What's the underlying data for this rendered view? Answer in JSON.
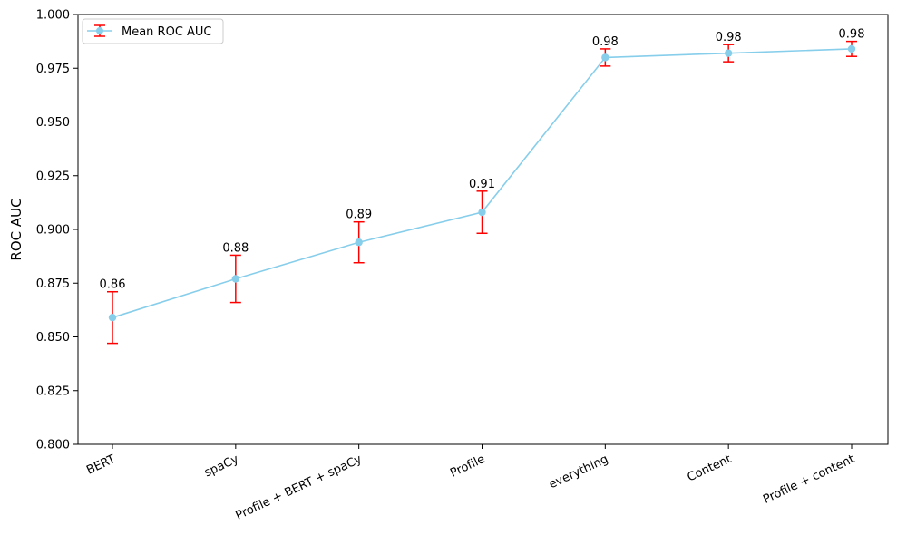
{
  "chart_data": {
    "type": "line",
    "title": "",
    "xlabel": "",
    "ylabel": "ROC AUC",
    "ylim": [
      0.8,
      1.0
    ],
    "yticks": [
      0.8,
      0.825,
      0.85,
      0.875,
      0.9,
      0.925,
      0.95,
      0.975,
      1.0
    ],
    "ytick_labels": [
      "0.800",
      "0.825",
      "0.850",
      "0.875",
      "0.900",
      "0.925",
      "0.950",
      "0.975",
      "1.000"
    ],
    "categories": [
      "BERT",
      "spaCy",
      "Profile + BERT + spaCy",
      "Profile",
      "everything",
      "Content",
      "Profile + content"
    ],
    "series": [
      {
        "name": "Mean ROC AUC",
        "values": [
          0.859,
          0.877,
          0.894,
          0.908,
          0.98,
          0.982,
          0.984
        ],
        "error": [
          0.012,
          0.011,
          0.0095,
          0.0098,
          0.004,
          0.004,
          0.0035
        ],
        "data_labels": [
          "0.86",
          "0.88",
          "0.89",
          "0.91",
          "0.98",
          "0.98",
          "0.98"
        ]
      }
    ],
    "legend": {
      "position": "top-left",
      "entries": [
        "Mean ROC AUC"
      ]
    },
    "grid": false,
    "colors": {
      "line": "#87ceeb",
      "marker": "#87ceeb",
      "errorbar": "#ff0000"
    }
  }
}
